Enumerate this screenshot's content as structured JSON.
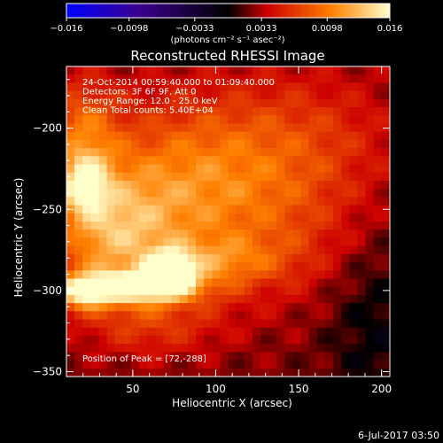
{
  "chart_data": {
    "type": "heatmap",
    "title": "Reconstructed RHESSI Image",
    "xlabel": "Heliocentric X (arcsec)",
    "ylabel": "Heliocentric Y (arcsec)",
    "xlim": [
      10,
      205
    ],
    "ylim": [
      -353,
      -162
    ],
    "x_ticks": [
      50,
      100,
      150,
      200
    ],
    "y_ticks": [
      -200,
      -250,
      -300,
      -350
    ],
    "colorbar": {
      "range": [
        -0.016,
        0.016
      ],
      "tick_values": [
        -0.016,
        -0.0098,
        -0.0033,
        0.0033,
        0.0098,
        0.016
      ],
      "tick_labels": [
        "−0.016",
        "−0.0098",
        "−0.0033",
        "0.0033",
        "0.0098",
        "0.016"
      ],
      "label": "(photons cm⁻² s⁻¹ asec⁻²)",
      "colors": [
        "#0000ff",
        "#3a0090",
        "#000000",
        "#cc0000",
        "#ff8000",
        "#ffffcc"
      ]
    },
    "annotations": [
      "24-Oct-2014 00:59:40.000 to 01:09:40.000",
      "Detectors: 3F 6F 9F, Att 0",
      "Energy Range: 12.0 - 25.0 keV",
      "Clean    Total counts: 5.40E+04"
    ],
    "peak_label": "Position of Peak = [72,-288]",
    "peak": [
      72,
      -288
    ],
    "features": [
      {
        "x": 72,
        "y": -289,
        "sx": 9,
        "sy": 8,
        "v": 0.0165
      },
      {
        "x": 45,
        "y": -298,
        "sx": 30,
        "sy": 7,
        "v": 0.0115
      },
      {
        "x": 20,
        "y": -303,
        "sx": 10,
        "sy": 7,
        "v": 0.006
      },
      {
        "x": 100,
        "y": -282,
        "sx": 28,
        "sy": 10,
        "v": 0.0045
      },
      {
        "x": 35,
        "y": -265,
        "sx": 25,
        "sy": 25,
        "v": 0.007
      },
      {
        "x": 70,
        "y": -245,
        "sx": 40,
        "sy": 40,
        "v": 0.0055
      },
      {
        "x": 20,
        "y": -235,
        "sx": 10,
        "sy": 12,
        "v": 0.0075
      },
      {
        "x": 20,
        "y": -205,
        "sx": 15,
        "sy": 25,
        "v": 0.006
      },
      {
        "x": 110,
        "y": -225,
        "sx": 45,
        "sy": 35,
        "v": 0.0038
      },
      {
        "x": 160,
        "y": -205,
        "sx": 40,
        "sy": 30,
        "v": 0.0028
      },
      {
        "x": 145,
        "y": -270,
        "sx": 35,
        "sy": 30,
        "v": 0.0025
      },
      {
        "x": 60,
        "y": -320,
        "sx": 30,
        "sy": 15,
        "v": 0.0035
      },
      {
        "x": 195,
        "y": -320,
        "sx": 20,
        "sy": 40,
        "v": -0.0025
      }
    ]
  },
  "footer_date": "6-Jul-2017 03:50"
}
